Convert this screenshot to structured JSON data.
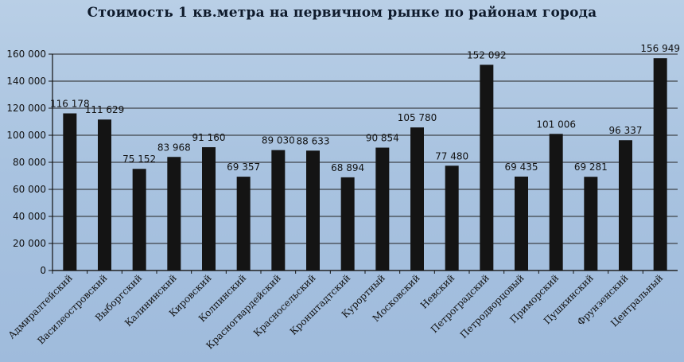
{
  "chart_data": {
    "type": "bar",
    "title": "Стоимость 1 кв.метра на первичном  рынке по районам  города",
    "xlabel": "",
    "ylabel": "",
    "ylim": [
      0,
      160000
    ],
    "yticks": [
      0,
      20000,
      40000,
      60000,
      80000,
      100000,
      120000,
      140000,
      160000
    ],
    "ytick_labels": [
      "0",
      "20 000",
      "40 000",
      "60 000",
      "80 000",
      "100 000",
      "120 000",
      "140 000",
      "160 000"
    ],
    "grid": true,
    "legend": "none",
    "categories": [
      "Адмиралтейский",
      "Василеостровский",
      "Выборгский",
      "Калининский",
      "Кировский",
      "Колпинский",
      "Красногвардейский",
      "Красносельский",
      "Кронштадтский",
      "Курортный",
      "Московский",
      "Невский",
      "Петроградский",
      "Петродворцовый",
      "Приморский",
      "Пушкинский",
      "Фрунзенский",
      "Центральный"
    ],
    "values": [
      116178,
      111629,
      75152,
      83968,
      91160,
      69357,
      89030,
      88633,
      68894,
      90854,
      105780,
      77480,
      152092,
      69435,
      101006,
      69281,
      96337,
      156949
    ],
    "value_labels": [
      "116 178",
      "111 629",
      "75 152",
      "83 968",
      "91 160",
      "69 357",
      "89 030",
      "88 633",
      "68 894",
      "90 854",
      "105 780",
      "77 480",
      "152 092",
      "69 435",
      "101 006",
      "69 281",
      "96 337",
      "156 949"
    ],
    "colors": {
      "bar": "#141414",
      "grid": "#222222",
      "axis": "#111111"
    }
  }
}
